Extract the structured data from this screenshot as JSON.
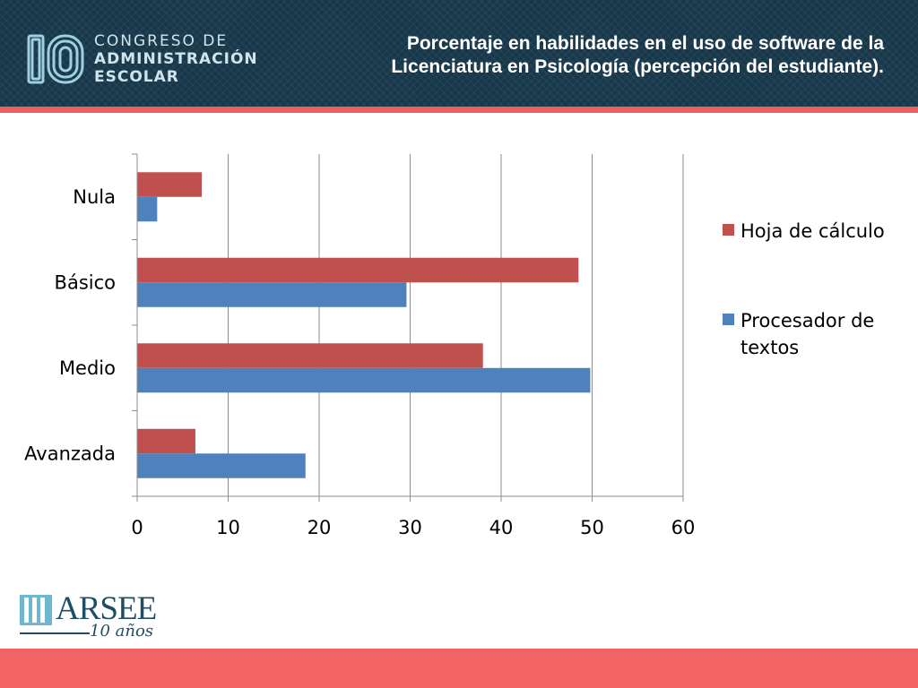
{
  "header": {
    "logo_number": "10",
    "logo_lines": [
      "CONGRESO DE",
      "ADMINISTRACIÓN",
      "ESCOLAR"
    ],
    "title": "Porcentaje en habilidades en el uso de software de la Licenciatura en Psicología (percepción del estudiante)."
  },
  "brand": {
    "name": "ARSEE",
    "tagline": "10 años"
  },
  "colors": {
    "header_bg": "#17384a",
    "accent_red": "#f05f5f",
    "series_hoja": "#c0504d",
    "series_procesador": "#4f81bd"
  },
  "chart_data": {
    "type": "bar",
    "orientation": "horizontal",
    "categories": [
      "Nula",
      "Básico",
      "Medio",
      "Avanzada"
    ],
    "series": [
      {
        "name": "Hoja de cálculo",
        "color": "#c0504d",
        "values": [
          7.1,
          48.5,
          38.0,
          6.4
        ]
      },
      {
        "name": "Procesador de textos",
        "color": "#4f81bd",
        "values": [
          2.2,
          29.6,
          49.8,
          18.5
        ]
      }
    ],
    "xlim": [
      0,
      60
    ],
    "xticks": [
      "0",
      "10",
      "20",
      "30",
      "40",
      "50",
      "60"
    ],
    "grid": true,
    "legend_position": "right",
    "title": "",
    "xlabel": "",
    "ylabel": ""
  }
}
